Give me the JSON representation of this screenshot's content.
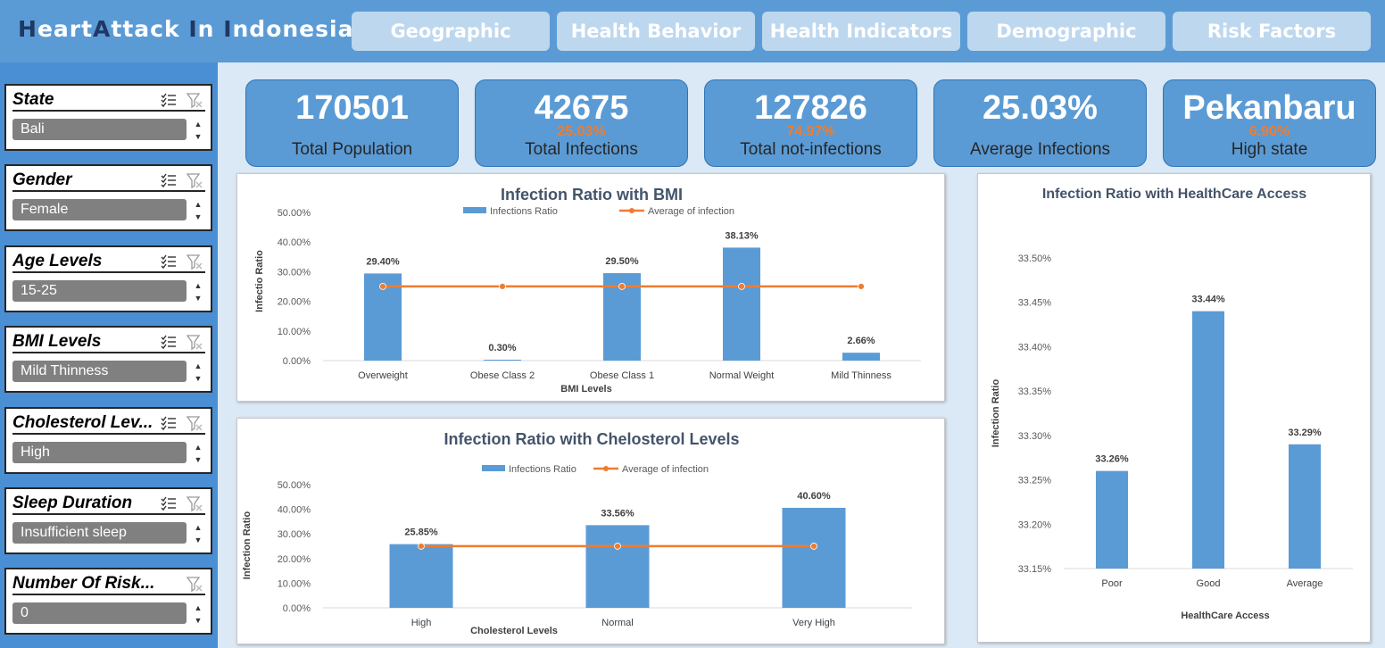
{
  "header": {
    "logo": {
      "H": "H",
      "eart": "eart",
      "A": "A",
      "ttack": "ttack",
      "I": "I",
      "n": "n",
      "In": "I",
      "ndonesia": "ndonesia"
    },
    "tabs": [
      {
        "label": "Geographic"
      },
      {
        "label": "Health Behavior"
      },
      {
        "label": "Health Indicators"
      },
      {
        "label": "Demographic"
      },
      {
        "label": "Risk Factors"
      }
    ]
  },
  "slicers": [
    {
      "title": "State",
      "selected": "Bali",
      "multiselect": true
    },
    {
      "title": "Gender",
      "selected": "Female",
      "multiselect": true
    },
    {
      "title": "Age Levels",
      "selected": "15-25",
      "multiselect": true
    },
    {
      "title": "BMI Levels",
      "selected": "Mild Thinness",
      "multiselect": true
    },
    {
      "title": "Cholesterol Lev...",
      "selected": "High",
      "multiselect": true
    },
    {
      "title": "Sleep Duration",
      "selected": "Insufficient sleep",
      "multiselect": true
    },
    {
      "title": "Number Of Risk...",
      "selected": "0",
      "multiselect": false
    }
  ],
  "kpis": [
    {
      "value": "170501",
      "pct": "",
      "label": "Total Population"
    },
    {
      "value": "42675",
      "pct": "25.03%",
      "label": "Total Infections"
    },
    {
      "value": "127826",
      "pct": "74.97%",
      "label": "Total not-infections"
    },
    {
      "value": "25.03%",
      "pct": "",
      "label": "Average Infections"
    },
    {
      "value": "Pekanbaru",
      "pct": "6.90%",
      "label": "High state"
    }
  ],
  "colors": {
    "bar": "#5b9bd5",
    "line": "#ed7d31",
    "header": "#5b9bd5",
    "tab": "#bdd7ee",
    "sidebar": "#4a8fd4",
    "main": "#dbe8f5"
  },
  "chart_data": [
    {
      "type": "bar",
      "title": "Infection Ratio with BMI",
      "xlabel": "BMI Levels",
      "ylabel": "Infectio Ratio",
      "categories": [
        "Overweight",
        "Obese Class 2",
        "Obese Class 1",
        "Normal Weight",
        "Mild Thinness"
      ],
      "series": [
        {
          "name": "Infections Ratio",
          "type": "bar",
          "values": [
            29.4,
            0.3,
            29.5,
            38.13,
            2.66
          ],
          "labels": [
            "29.40%",
            "0.30%",
            "29.50%",
            "38.13%",
            "2.66%"
          ]
        },
        {
          "name": "Average of infection",
          "type": "line",
          "values": [
            25.03,
            25.03,
            25.03,
            25.03,
            25.03
          ]
        }
      ],
      "yticks": [
        "0.00%",
        "10.00%",
        "20.00%",
        "30.00%",
        "40.00%",
        "50.00%"
      ],
      "ylim": [
        0,
        50
      ],
      "legend": "top",
      "grid": false
    },
    {
      "type": "bar",
      "title": "Infection Ratio with Chelosterol Levels",
      "xlabel": "Cholesterol Levels",
      "ylabel": "Infection Ratio",
      "categories": [
        "High",
        "Normal",
        "Very High"
      ],
      "series": [
        {
          "name": "Infections Ratio",
          "type": "bar",
          "values": [
            25.85,
            33.56,
            40.6
          ],
          "labels": [
            "25.85%",
            "33.56%",
            "40.60%"
          ]
        },
        {
          "name": "Average of infection",
          "type": "line",
          "values": [
            25.03,
            25.03,
            25.03
          ]
        }
      ],
      "yticks": [
        "0.00%",
        "10.00%",
        "20.00%",
        "30.00%",
        "40.00%",
        "50.00%"
      ],
      "ylim": [
        0,
        50
      ],
      "legend": "top",
      "grid": false
    },
    {
      "type": "bar",
      "title": "Infection Ratio with HealthCare Access",
      "xlabel": "HealthCare Access",
      "ylabel": "Infection Ratio",
      "categories": [
        "Poor",
        "Good",
        "Average"
      ],
      "series": [
        {
          "name": "Infections Ratio",
          "type": "bar",
          "values": [
            33.26,
            33.44,
            33.29
          ],
          "labels": [
            "33.26%",
            "33.44%",
            "33.29%"
          ]
        }
      ],
      "yticks": [
        "33.15%",
        "33.20%",
        "33.25%",
        "33.30%",
        "33.35%",
        "33.40%",
        "33.45%",
        "33.50%"
      ],
      "ylim": [
        33.15,
        33.5
      ],
      "legend": "none",
      "grid": false
    }
  ]
}
